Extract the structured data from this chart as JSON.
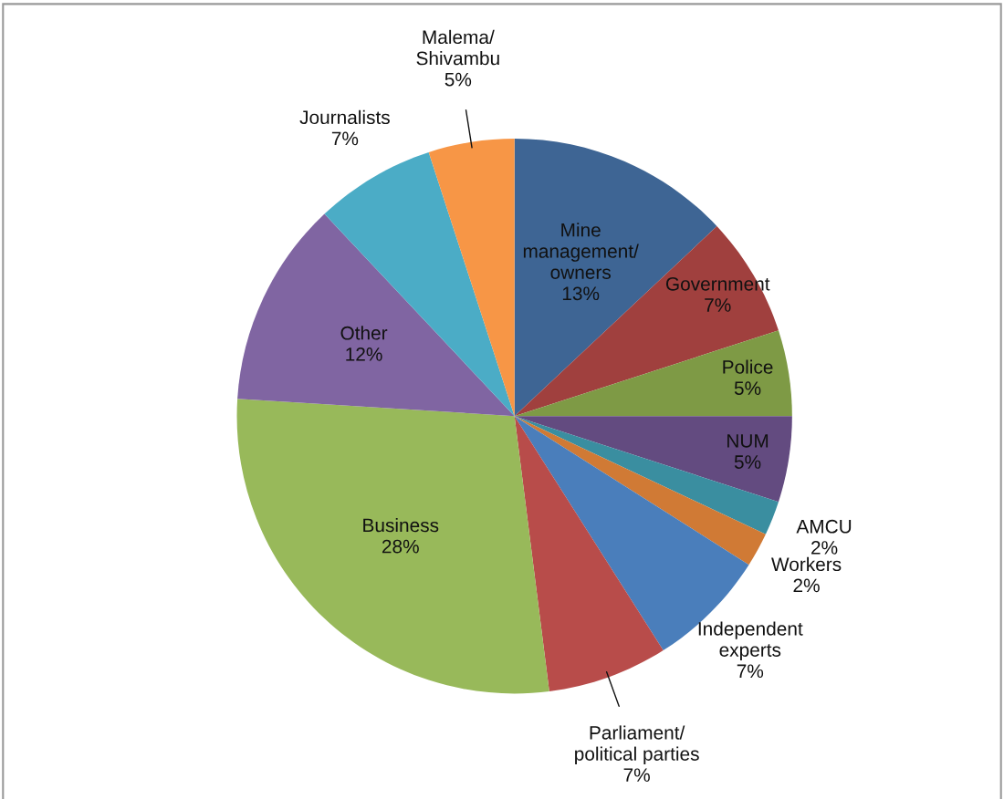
{
  "chart_data": {
    "type": "pie",
    "categories": [
      "Mine\nmanagement/\nowners",
      "Government",
      "Police",
      "NUM",
      "AMCU",
      "Workers",
      "Independent\nexperts",
      "Parliament/\npolitical parties",
      "Business",
      "Other",
      "Journalists",
      "Malema/\nShivambu"
    ],
    "values": [
      13,
      7,
      5,
      5,
      2,
      2,
      7,
      7,
      28,
      12,
      7,
      5
    ],
    "colors": [
      "#3e6594",
      "#a0403e",
      "#7e9a45",
      "#634b80",
      "#3a8ea0",
      "#d07a35",
      "#4a7ebb",
      "#b84c4a",
      "#98b95a",
      "#8065a2",
      "#4bacc6",
      "#f79646"
    ],
    "value_labels": [
      "13%",
      "7%",
      "5%",
      "5%",
      "2%",
      "2%",
      "7%",
      "7%",
      "28%",
      "12%",
      "7%",
      "5%"
    ],
    "legend": false
  }
}
